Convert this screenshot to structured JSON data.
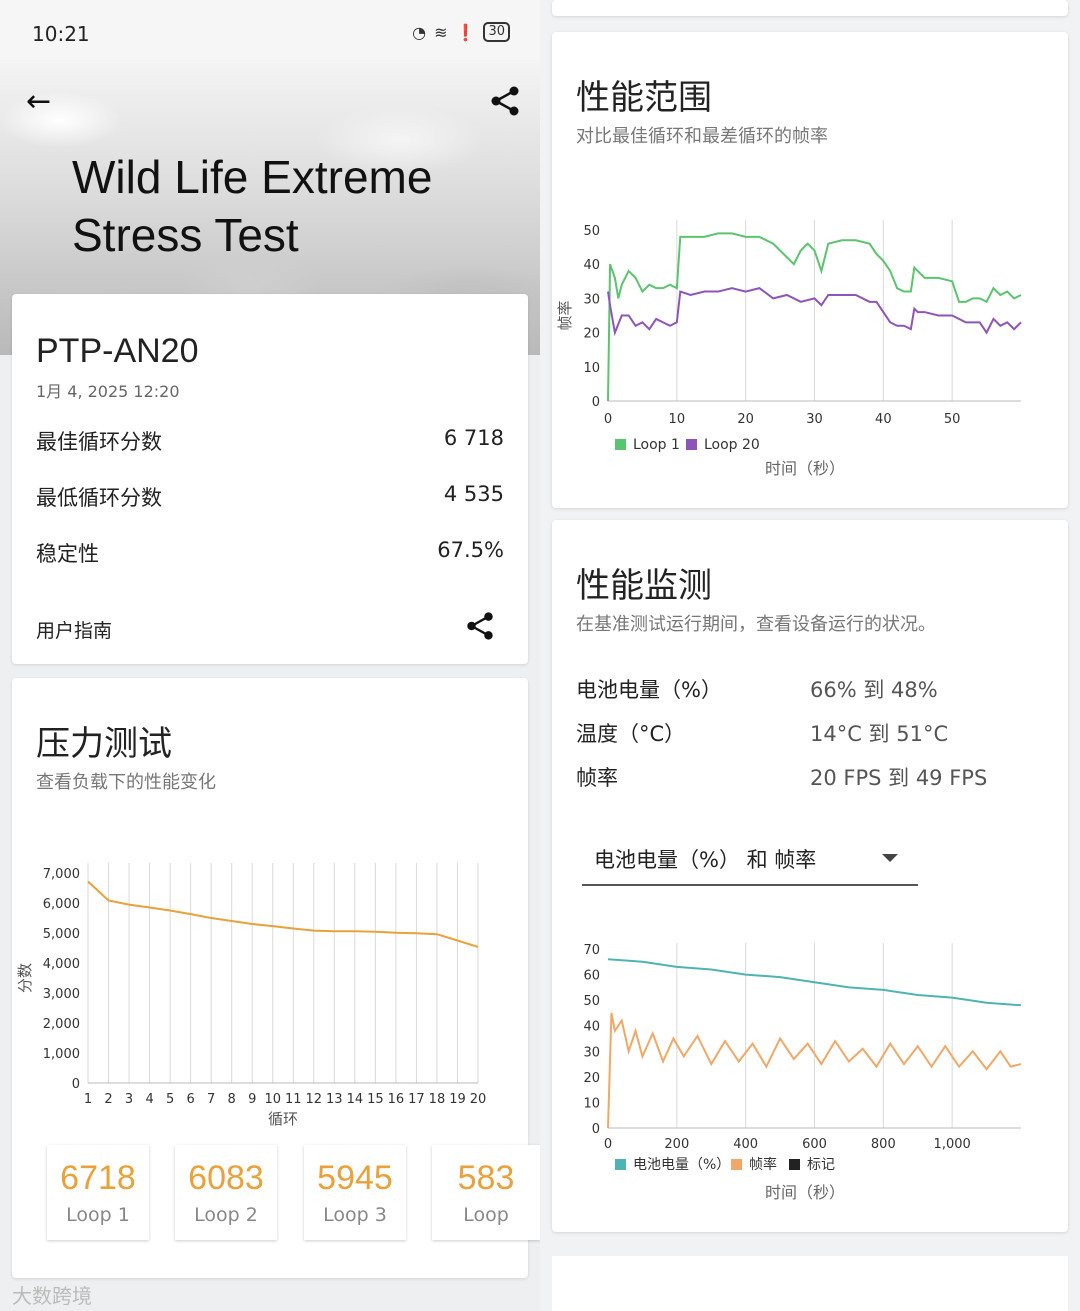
{
  "status_bar": {
    "time": "10:21",
    "battery": "30"
  },
  "header": {
    "title_line1": "Wild Life Extreme",
    "title_line2": "Stress Test"
  },
  "device": {
    "name": "PTP-AN20",
    "date": "1月 4, 2025 12:20",
    "rows": [
      {
        "label": "最佳循环分数",
        "value": "6 718"
      },
      {
        "label": "最低循环分数",
        "value": "4 535"
      },
      {
        "label": "稳定性",
        "value": "67.5%"
      }
    ],
    "guide_label": "用户指南"
  },
  "stress": {
    "title": "压力测试",
    "subtitle": "查看负载下的性能变化",
    "loops": [
      {
        "score": "6718",
        "label": "Loop 1"
      },
      {
        "score": "6083",
        "label": "Loop 2"
      },
      {
        "score": "5945",
        "label": "Loop 3"
      },
      {
        "score": "583",
        "label": "Loop"
      }
    ]
  },
  "range": {
    "title": "性能范围",
    "subtitle": "对比最佳循环和最差循环的帧率"
  },
  "monitor": {
    "title": "性能监测",
    "subtitle": "在基准测试运行期间，查看设备运行的状况。",
    "rows": [
      {
        "label": "电池电量（%）",
        "value": "66% 到 48%"
      },
      {
        "label": "温度（°C）",
        "value": "14°C 到 51°C"
      },
      {
        "label": "帧率",
        "value": "20 FPS 到 49 FPS"
      }
    ],
    "dropdown": "电池电量（%） 和 帧率"
  },
  "watermark": "大数跨境",
  "colors": {
    "score": "#e9a13b",
    "loop1": "#5bc46e",
    "loop20": "#8e55b8",
    "battery": "#4fb3b3",
    "fps": "#f0a868"
  },
  "chart_data": [
    {
      "type": "line",
      "title": "",
      "xlabel": "循环",
      "ylabel": "分数",
      "x": [
        1,
        2,
        3,
        4,
        5,
        6,
        7,
        8,
        9,
        10,
        11,
        12,
        13,
        14,
        15,
        16,
        17,
        18,
        19,
        20
      ],
      "ylim": [
        0,
        7000
      ],
      "yticks": [
        "0",
        "1,000",
        "2,000",
        "3,000",
        "4,000",
        "5,000",
        "6,000",
        "7,000"
      ],
      "series": [
        {
          "values": [
            6718,
            6083,
            5945,
            5850,
            5750,
            5630,
            5500,
            5400,
            5300,
            5230,
            5150,
            5080,
            5060,
            5060,
            5040,
            5010,
            4990,
            4960,
            4750,
            4535
          ]
        }
      ],
      "grid": "vertical"
    },
    {
      "type": "line",
      "xlabel": "时间（秒）",
      "ylabel": "帧率",
      "xlim": [
        0,
        60
      ],
      "ylim": [
        0,
        50
      ],
      "xticks": [
        "0",
        "10",
        "20",
        "30",
        "40",
        "50"
      ],
      "yticks": [
        "0",
        "10",
        "20",
        "30",
        "40",
        "50"
      ],
      "legend": "bottom",
      "series": [
        {
          "name": "Loop 1",
          "x": [
            0,
            0.3,
            1,
            1.5,
            2,
            3,
            4,
            5,
            6,
            7,
            8,
            9,
            10,
            10.5,
            11,
            12,
            14,
            16,
            18,
            20,
            22,
            24,
            25,
            26,
            27,
            28,
            29,
            30,
            31,
            32,
            34,
            36,
            38,
            39,
            40,
            41,
            42,
            43,
            44,
            44.5,
            45,
            46,
            48,
            50,
            51,
            52,
            53,
            54,
            55,
            56,
            57,
            58,
            59,
            60
          ],
          "values": [
            0,
            40,
            36,
            30,
            34,
            38,
            36,
            32,
            34,
            33,
            33,
            34,
            33,
            48,
            48,
            48,
            48,
            49,
            49,
            48,
            48,
            46,
            44,
            42,
            40,
            44,
            46,
            44,
            38,
            46,
            47,
            47,
            46,
            43,
            41,
            38,
            33,
            32,
            32,
            39,
            38,
            36,
            36,
            35,
            29,
            29,
            30,
            30,
            29,
            33,
            31,
            32,
            30,
            31
          ]
        },
        {
          "name": "Loop 20",
          "x": [
            0,
            0.3,
            1,
            2,
            3,
            4,
            5,
            6,
            7,
            8,
            9,
            10,
            10.5,
            12,
            14,
            16,
            18,
            20,
            22,
            24,
            26,
            28,
            30,
            31,
            32,
            34,
            36,
            38,
            39,
            40,
            41,
            42,
            43,
            44,
            44.5,
            45,
            46,
            48,
            50,
            52,
            54,
            55,
            56,
            57,
            58,
            59,
            60
          ],
          "values": [
            32,
            28,
            20,
            25,
            25,
            22,
            23,
            21,
            24,
            23,
            22,
            23,
            32,
            31,
            32,
            32,
            33,
            32,
            33,
            30,
            31,
            29,
            30,
            28,
            31,
            31,
            31,
            29,
            29,
            26,
            23,
            22,
            22,
            21,
            27,
            26,
            26,
            25,
            25,
            23,
            23,
            20,
            24,
            22,
            23,
            21,
            23
          ]
        }
      ]
    },
    {
      "type": "line",
      "xlabel": "时间（秒）",
      "xlim": [
        0,
        1200
      ],
      "ylim": [
        0,
        70
      ],
      "xticks": [
        "0",
        "200",
        "400",
        "600",
        "800",
        "1,000"
      ],
      "yticks": [
        "0",
        "10",
        "20",
        "30",
        "40",
        "50",
        "60",
        "70"
      ],
      "legend": "bottom",
      "legend_entries": [
        "电池电量（%）",
        "帧率",
        "标记"
      ],
      "series": [
        {
          "name": "电池电量（%）",
          "x": [
            0,
            100,
            200,
            300,
            400,
            500,
            600,
            700,
            800,
            900,
            1000,
            1100,
            1200
          ],
          "values": [
            66,
            65,
            63,
            62,
            60,
            59,
            57,
            55,
            54,
            52,
            51,
            49,
            48
          ]
        },
        {
          "name": "帧率",
          "x": [
            0,
            10,
            20,
            40,
            60,
            80,
            100,
            130,
            160,
            190,
            220,
            260,
            300,
            340,
            380,
            420,
            460,
            500,
            540,
            580,
            620,
            660,
            700,
            740,
            780,
            820,
            860,
            900,
            940,
            980,
            1020,
            1060,
            1100,
            1140,
            1170,
            1200
          ],
          "values": [
            0,
            45,
            38,
            42,
            30,
            38,
            28,
            37,
            26,
            35,
            28,
            36,
            25,
            34,
            26,
            33,
            24,
            35,
            27,
            33,
            25,
            34,
            26,
            31,
            24,
            33,
            25,
            32,
            24,
            32,
            24,
            30,
            23,
            30,
            24,
            25
          ]
        }
      ]
    }
  ]
}
